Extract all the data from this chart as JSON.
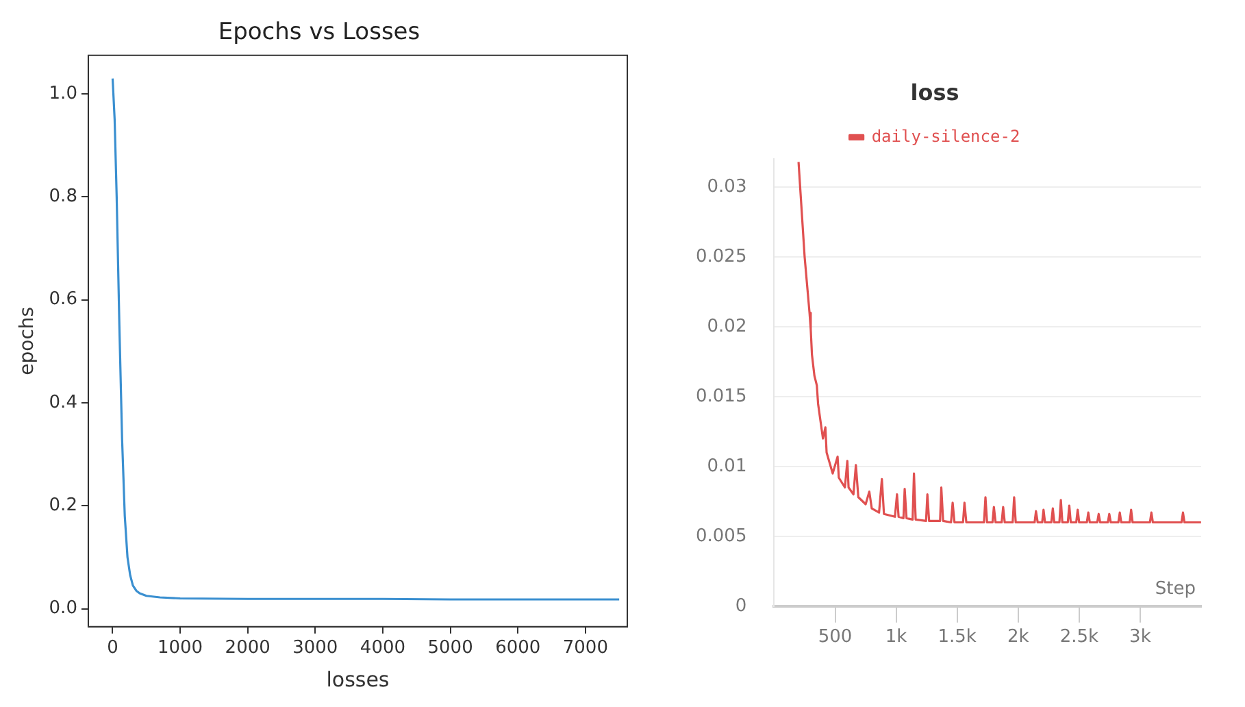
{
  "chart_data": [
    {
      "type": "line",
      "title": "Epochs vs Losses",
      "xlabel": "losses",
      "ylabel": "epochs",
      "series": [
        {
          "color": "#3a8fd0",
          "x": [
            0,
            30,
            60,
            100,
            140,
            180,
            220,
            260,
            300,
            350,
            400,
            500,
            700,
            1000,
            2000,
            3000,
            4000,
            5000,
            6000,
            7000,
            7500
          ],
          "values": [
            1.03,
            0.95,
            0.8,
            0.55,
            0.33,
            0.18,
            0.1,
            0.065,
            0.045,
            0.035,
            0.03,
            0.025,
            0.022,
            0.02,
            0.019,
            0.019,
            0.019,
            0.018,
            0.018,
            0.018,
            0.018
          ]
        }
      ],
      "xlim": [
        -360,
        7620
      ],
      "ylim": [
        -0.035,
        1.075
      ],
      "xticks": [
        0,
        1000,
        2000,
        3000,
        4000,
        5000,
        6000,
        7000
      ],
      "yticks": [
        {
          "value": 0,
          "label": "0.0"
        },
        0.2,
        0.4,
        0.6,
        0.8,
        {
          "value": 1,
          "label": "1.0"
        }
      ],
      "grid": false,
      "legend": false
    },
    {
      "type": "line",
      "title": "loss",
      "xlabel": "Step",
      "series": [
        {
          "name": "daily-silence-2",
          "color": "#e05050",
          "x": [
            200,
            250,
            290,
            300,
            310,
            330,
            350,
            360,
            400,
            420,
            430,
            480,
            520,
            530,
            580,
            600,
            610,
            650,
            670,
            690,
            750,
            780,
            800,
            860,
            883,
            900,
            990,
            1007,
            1020,
            1060,
            1070,
            1085,
            1135,
            1146,
            1160,
            1245,
            1256,
            1270,
            1360,
            1370,
            1385,
            1450,
            1463,
            1478,
            1548,
            1560,
            1575,
            1720,
            1732,
            1745,
            1790,
            1801,
            1815,
            1865,
            1877,
            1890,
            1955,
            1967,
            1980,
            2135,
            2146,
            2160,
            2197,
            2208,
            2220,
            2272,
            2284,
            2296,
            2338,
            2350,
            2362,
            2407,
            2419,
            2431,
            2476,
            2488,
            2500,
            2563,
            2575,
            2587,
            2648,
            2660,
            2672,
            2735,
            2747,
            2759,
            2821,
            2833,
            2845,
            2914,
            2926,
            2938,
            3080,
            3092,
            3104,
            3339,
            3351,
            3363,
            3499
          ],
          "values": [
            0.0318,
            0.025,
            0.021,
            0.0198,
            0.018,
            0.0165,
            0.0158,
            0.0145,
            0.012,
            0.0128,
            0.011,
            0.0095,
            0.0107,
            0.0092,
            0.0085,
            0.0104,
            0.0085,
            0.008,
            0.0101,
            0.0078,
            0.0073,
            0.0082,
            0.007,
            0.0067,
            0.0091,
            0.0066,
            0.0064,
            0.008,
            0.0064,
            0.0063,
            0.0084,
            0.0063,
            0.0062,
            0.0095,
            0.0062,
            0.0061,
            0.008,
            0.0061,
            0.0061,
            0.0085,
            0.0061,
            0.006,
            0.0074,
            0.006,
            0.006,
            0.0074,
            0.006,
            0.006,
            0.0078,
            0.006,
            0.006,
            0.0071,
            0.006,
            0.006,
            0.0071,
            0.006,
            0.006,
            0.0078,
            0.006,
            0.006,
            0.0068,
            0.006,
            0.006,
            0.0069,
            0.006,
            0.006,
            0.007,
            0.006,
            0.006,
            0.0076,
            0.006,
            0.006,
            0.0072,
            0.006,
            0.006,
            0.0069,
            0.006,
            0.006,
            0.0067,
            0.006,
            0.006,
            0.0066,
            0.006,
            0.006,
            0.0066,
            0.006,
            0.006,
            0.0067,
            0.006,
            0.006,
            0.0069,
            0.006,
            0.006,
            0.0067,
            0.006,
            0.006,
            0.0067,
            0.006,
            0.006
          ]
        }
      ],
      "xlim": [
        0,
        3500
      ],
      "ylim": [
        0,
        0.032
      ],
      "xticks": [
        500,
        {
          "value": 1000,
          "label": "1k"
        },
        {
          "value": 1500,
          "label": "1.5k"
        },
        {
          "value": 2000,
          "label": "2k"
        },
        {
          "value": 2500,
          "label": "2.5k"
        },
        {
          "value": 3000,
          "label": "3k"
        }
      ],
      "yticks": [
        0,
        0.005,
        0.01,
        0.015,
        0.02,
        0.025,
        0.03
      ],
      "grid": "y",
      "legend": "top"
    }
  ]
}
